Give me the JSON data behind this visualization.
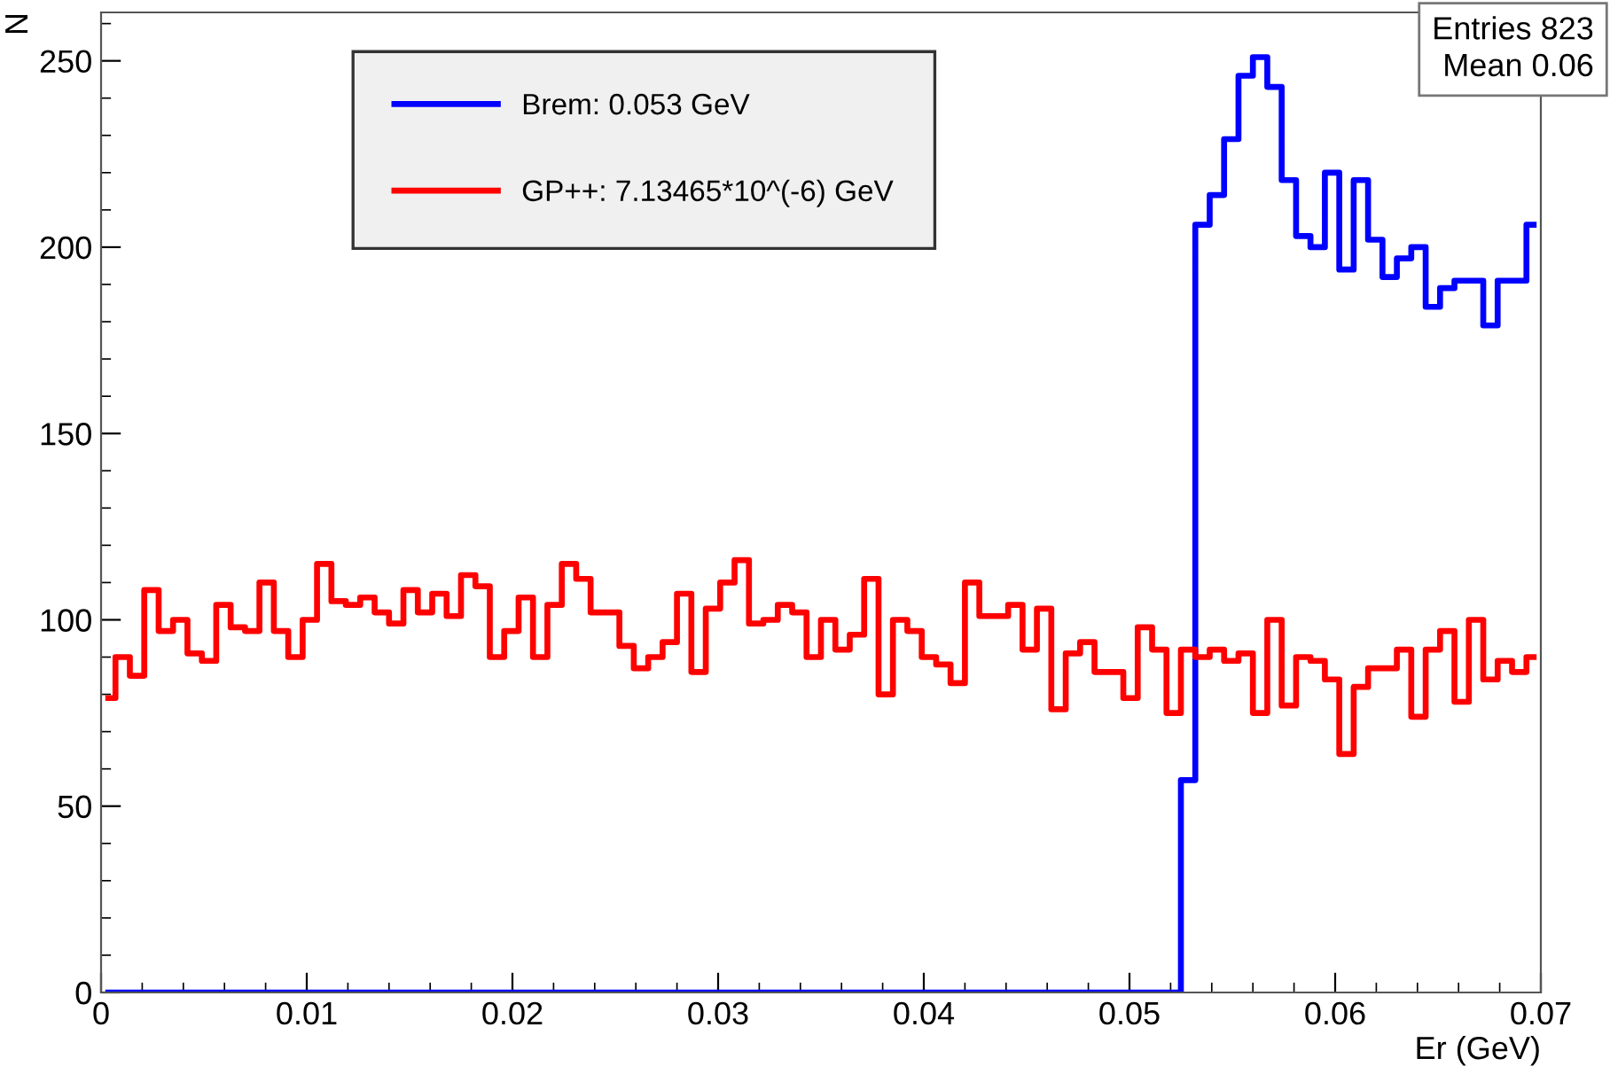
{
  "chart_data": {
    "type": "step",
    "ylabel": "N",
    "xlabel": "Er (GeV)",
    "x": [
      0.00035,
      0.00105,
      0.00175,
      0.00245,
      0.00315,
      0.00385,
      0.00455,
      0.00525,
      0.00595,
      0.00665,
      0.00735,
      0.00805,
      0.00875,
      0.00945,
      0.01015,
      0.01085,
      0.01155,
      0.01225,
      0.01295,
      0.01365,
      0.01435,
      0.01505,
      0.01575,
      0.01645,
      0.01715,
      0.01785,
      0.01855,
      0.01925,
      0.01995,
      0.02065,
      0.02135,
      0.02205,
      0.02275,
      0.02345,
      0.02415,
      0.02485,
      0.02555,
      0.02625,
      0.02695,
      0.02765,
      0.02835,
      0.02905,
      0.02975,
      0.03045,
      0.03115,
      0.03185,
      0.03255,
      0.03325,
      0.03395,
      0.03465,
      0.03535,
      0.03605,
      0.03675,
      0.03745,
      0.03815,
      0.03885,
      0.03955,
      0.04025,
      0.04095,
      0.04165,
      0.04235,
      0.04305,
      0.04375,
      0.04445,
      0.04515,
      0.04585,
      0.04655,
      0.04725,
      0.04795,
      0.04865,
      0.04935,
      0.05005,
      0.05075,
      0.05145,
      0.05215,
      0.05285,
      0.05355,
      0.05425,
      0.05495,
      0.05565,
      0.05635,
      0.05705,
      0.05775,
      0.05845,
      0.05915,
      0.05985,
      0.06055,
      0.06125,
      0.06195,
      0.06265,
      0.06335,
      0.06405,
      0.06475,
      0.06545,
      0.06615,
      0.06685,
      0.06755,
      0.06825,
      0.06895,
      0.06965
    ],
    "series": [
      {
        "name": "Brem: 0.053 GeV",
        "color": "#0000ff",
        "values": [
          0,
          0,
          0,
          0,
          0,
          0,
          0,
          0,
          0,
          0,
          0,
          0,
          0,
          0,
          0,
          0,
          0,
          0,
          0,
          0,
          0,
          0,
          0,
          0,
          0,
          0,
          0,
          0,
          0,
          0,
          0,
          0,
          0,
          0,
          0,
          0,
          0,
          0,
          0,
          0,
          0,
          0,
          0,
          0,
          0,
          0,
          0,
          0,
          0,
          0,
          0,
          0,
          0,
          0,
          0,
          0,
          0,
          0,
          0,
          0,
          0,
          0,
          0,
          0,
          0,
          0,
          0,
          0,
          0,
          0,
          0,
          0,
          0,
          0,
          0,
          57,
          206,
          214,
          229,
          246,
          251,
          243,
          218,
          203,
          200,
          220,
          194,
          218,
          202,
          192,
          197,
          200,
          184,
          189,
          191,
          191,
          179,
          191,
          191,
          206
        ]
      },
      {
        "name": "GP++: 7.13465*10^(-6) GeV",
        "color": "#ff0000",
        "values": [
          79,
          90,
          85,
          108,
          97,
          100,
          91,
          89,
          104,
          98,
          97,
          110,
          97,
          90,
          100,
          115,
          105,
          104,
          106,
          102,
          99,
          108,
          102,
          107,
          101,
          112,
          109,
          90,
          97,
          106,
          90,
          104,
          115,
          111,
          102,
          102,
          93,
          87,
          90,
          94,
          107,
          86,
          103,
          110,
          116,
          99,
          100,
          104,
          102,
          90,
          100,
          92,
          96,
          111,
          80,
          100,
          97,
          90,
          88,
          83,
          110,
          101,
          101,
          104,
          92,
          103,
          76,
          91,
          94,
          86,
          86,
          79,
          98,
          92,
          75,
          92,
          90,
          92,
          89,
          91,
          75,
          100,
          77,
          90,
          89,
          84,
          64,
          82,
          87,
          87,
          92,
          74,
          92,
          97,
          78,
          100,
          84,
          89,
          86,
          90
        ]
      }
    ],
    "xlim": [
      0,
      0.07
    ],
    "xticks": [
      0,
      0.01,
      0.02,
      0.03,
      0.04,
      0.05,
      0.06,
      0.07
    ],
    "ylim": [
      0,
      263
    ],
    "yticks": [
      0,
      50,
      100,
      150,
      200,
      250
    ],
    "legend": "top left",
    "grid": false,
    "annotations": [
      "Entries 823",
      "Mean 0.06"
    ]
  }
}
